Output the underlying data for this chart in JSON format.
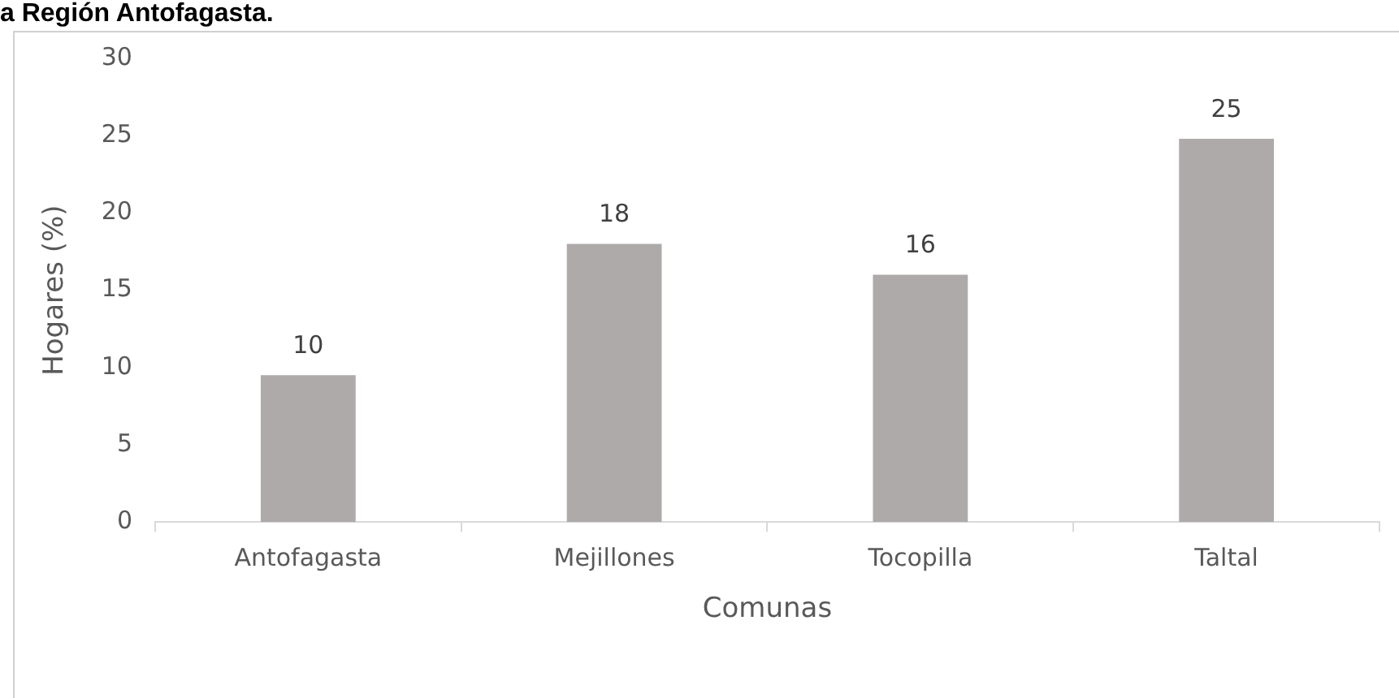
{
  "chart_data": {
    "type": "bar",
    "title": "a Región Antofagasta.",
    "xlabel": "Comunas",
    "ylabel": "Hogares (%)",
    "categories": [
      "Antofagasta",
      "Mejillones",
      "Tocopilla",
      "Taltal"
    ],
    "values": [
      9.5,
      18,
      16,
      24.8
    ],
    "value_labels": [
      "10",
      "18",
      "16",
      "25"
    ],
    "color": "#aeaaaa",
    "ylim": [
      0,
      30
    ],
    "yticks": [
      0,
      5,
      10,
      15,
      20,
      25,
      30
    ],
    "grid": false
  }
}
